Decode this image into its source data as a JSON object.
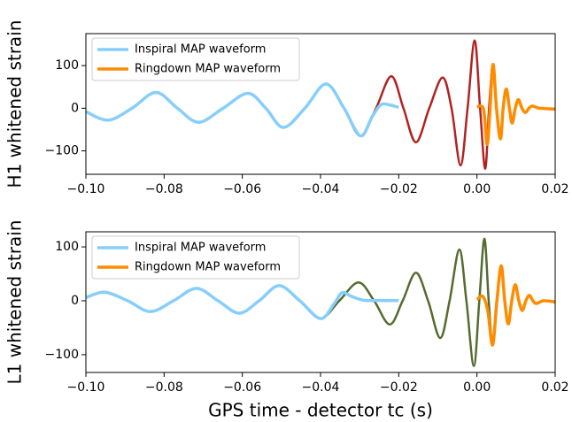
{
  "chart_data": [
    {
      "type": "line",
      "ylabel": "H1 whitened strain",
      "xlim": [
        -0.1,
        0.02
      ],
      "ylim": [
        -155,
        175
      ],
      "xticks": [
        {
          "value": -0.1,
          "label": "−0.10"
        },
        {
          "value": -0.08,
          "label": "−0.08"
        },
        {
          "value": -0.06,
          "label": "−0.06"
        },
        {
          "value": -0.04,
          "label": "−0.04"
        },
        {
          "value": -0.02,
          "label": "−0.02"
        },
        {
          "value": 0,
          "label": "0.00"
        },
        {
          "value": 0.02,
          "label": "0.02"
        }
      ],
      "yticks": [
        {
          "value": -100,
          "label": "−100"
        },
        0,
        100
      ],
      "legend": "upper left",
      "series": [
        {
          "color": "#b22222",
          "x": [
            -0.1,
            -0.0943,
            -0.0882,
            -0.0821,
            -0.0766,
            -0.0712,
            -0.0649,
            -0.0586,
            -0.054,
            -0.0495,
            -0.044,
            -0.0386,
            -0.034,
            -0.0298,
            -0.0258,
            -0.0219,
            -0.0188,
            -0.0156,
            -0.0122,
            -0.0088,
            -0.0065,
            -0.0042,
            -0.0024,
            -0.0006,
            0.0008,
            0.0021,
            0.0031,
            0.0041,
            0.005,
            0.006,
            0.0067,
            0.0075,
            0.0083,
            0.009,
            0.0098,
            0.0106,
            0.0115,
            0.0124,
            0.0133,
            0.0142,
            0.016,
            0.02
          ],
          "values": [
            -8,
            -28,
            0,
            37,
            0,
            -33,
            0,
            35,
            0,
            -45,
            0,
            57,
            0,
            -65,
            0,
            75,
            0,
            -80,
            0,
            72,
            0,
            -134,
            0,
            159,
            0,
            -142,
            0,
            103,
            0,
            -72,
            0,
            45,
            0,
            -35,
            0,
            20,
            0,
            -10,
            0,
            5,
            0,
            -3
          ]
        },
        {
          "name": "Inspiral MAP waveform",
          "color": "#87cefa",
          "x": [
            -0.1,
            -0.0943,
            -0.0882,
            -0.0821,
            -0.0766,
            -0.0712,
            -0.0649,
            -0.0586,
            -0.054,
            -0.0495,
            -0.044,
            -0.0386,
            -0.034,
            -0.0298,
            -0.0268,
            -0.0246,
            -0.0225,
            -0.02
          ],
          "values": [
            -8,
            -28,
            0,
            37,
            0,
            -33,
            0,
            35,
            0,
            -45,
            0,
            57,
            0,
            -65,
            -20,
            8,
            8,
            2
          ]
        },
        {
          "name": "Ringdown MAP waveform",
          "color": "#ff8c00",
          "x": [
            0,
            0.001,
            0.0018,
            0.0026,
            0.0033,
            0.0041,
            0.005,
            0.006,
            0.0067,
            0.0075,
            0.0083,
            0.009,
            0.0098,
            0.0106,
            0.0115,
            0.0124,
            0.0133,
            0.0142,
            0.016,
            0.02
          ],
          "values": [
            3,
            5,
            -8,
            -85,
            -10,
            103,
            0,
            -72,
            0,
            45,
            0,
            -35,
            0,
            20,
            0,
            -10,
            0,
            5,
            0,
            -2
          ]
        }
      ]
    },
    {
      "type": "line",
      "ylabel": "L1 whitened strain",
      "xlabel": "GPS time - detector tc (s)",
      "xlim": [
        -0.1,
        0.02
      ],
      "ylim": [
        -133,
        128
      ],
      "xticks": [
        {
          "value": -0.1,
          "label": "−0.10"
        },
        {
          "value": -0.08,
          "label": "−0.08"
        },
        {
          "value": -0.06,
          "label": "−0.06"
        },
        {
          "value": -0.04,
          "label": "−0.04"
        },
        {
          "value": -0.02,
          "label": "−0.02"
        },
        {
          "value": 0,
          "label": "0.00"
        },
        {
          "value": 0.02,
          "label": "0.02"
        }
      ],
      "yticks": [
        {
          "value": -100,
          "label": "−100"
        },
        0,
        100
      ],
      "legend": "upper left",
      "series": [
        {
          "color": "#556b2f",
          "x": [
            -0.1,
            -0.0952,
            -0.0893,
            -0.0835,
            -0.0776,
            -0.0717,
            -0.0662,
            -0.0608,
            -0.0557,
            -0.0506,
            -0.0453,
            -0.04,
            -0.0352,
            -0.0303,
            -0.0263,
            -0.0223,
            -0.019,
            -0.0156,
            -0.0125,
            -0.0094,
            -0.007,
            -0.0045,
            -0.0027,
            -0.0008,
            0.0006,
            0.0019,
            0.003,
            0.004,
            0.0051,
            0.0062,
            0.0071,
            0.008,
            0.0089,
            0.0098,
            0.0107,
            0.0116,
            0.0125,
            0.0134,
            0.0143,
            0.0152,
            0.017,
            0.02
          ],
          "values": [
            6,
            16,
            0,
            -20,
            0,
            23,
            0,
            -23,
            0,
            28,
            0,
            -33,
            0,
            34,
            0,
            -44,
            0,
            52,
            0,
            -69,
            0,
            95,
            0,
            -121,
            0,
            115,
            0,
            -82,
            0,
            65,
            0,
            -43,
            0,
            30,
            0,
            -18,
            0,
            10,
            0,
            -5,
            0,
            -3
          ]
        },
        {
          "name": "Inspiral MAP waveform",
          "color": "#87cefa",
          "x": [
            -0.1,
            -0.0952,
            -0.0893,
            -0.0835,
            -0.0776,
            -0.0717,
            -0.0662,
            -0.0608,
            -0.0557,
            -0.0506,
            -0.0453,
            -0.04,
            -0.0365,
            -0.0345,
            -0.032,
            -0.029,
            -0.025,
            -0.02
          ],
          "values": [
            6,
            16,
            0,
            -20,
            0,
            23,
            0,
            -23,
            0,
            28,
            0,
            -33,
            -5,
            15,
            8,
            1,
            0.5,
            0.5
          ]
        },
        {
          "name": "Ringdown MAP waveform",
          "color": "#ff8c00",
          "x": [
            0,
            0.0015,
            0.0028,
            0.004,
            0.0051,
            0.0062,
            0.0071,
            0.008,
            0.0089,
            0.0098,
            0.0107,
            0.0116,
            0.0125,
            0.0134,
            0.0143,
            0.0152,
            0.017,
            0.02
          ],
          "values": [
            2,
            8,
            -20,
            -82,
            0,
            65,
            0,
            -43,
            0,
            30,
            0,
            -18,
            0,
            10,
            0,
            -5,
            0,
            -2
          ]
        }
      ]
    }
  ]
}
